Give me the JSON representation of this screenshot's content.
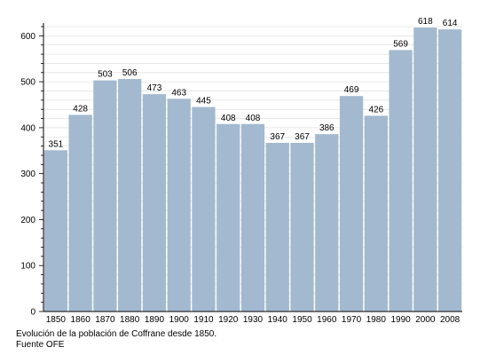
{
  "chart_data": {
    "type": "bar",
    "categories": [
      "1850",
      "1860",
      "1870",
      "1880",
      "1890",
      "1900",
      "1910",
      "1920",
      "1930",
      "1940",
      "1950",
      "1960",
      "1970",
      "1980",
      "1990",
      "2000",
      "2008"
    ],
    "values": [
      351,
      428,
      503,
      506,
      473,
      463,
      445,
      408,
      408,
      367,
      367,
      386,
      469,
      426,
      569,
      618,
      614
    ],
    "title": "",
    "xlabel": "",
    "ylabel": "",
    "ylim": [
      0,
      620
    ],
    "yticks": [
      0,
      100,
      200,
      300,
      400,
      500,
      600
    ],
    "grid": true,
    "bar_color": "#a3b9cf",
    "grid_color": "#d9d9d9"
  },
  "caption": {
    "line1": "Evolución de la población de Coffrane desde 1850.",
    "line2": "Fuente OFE"
  }
}
